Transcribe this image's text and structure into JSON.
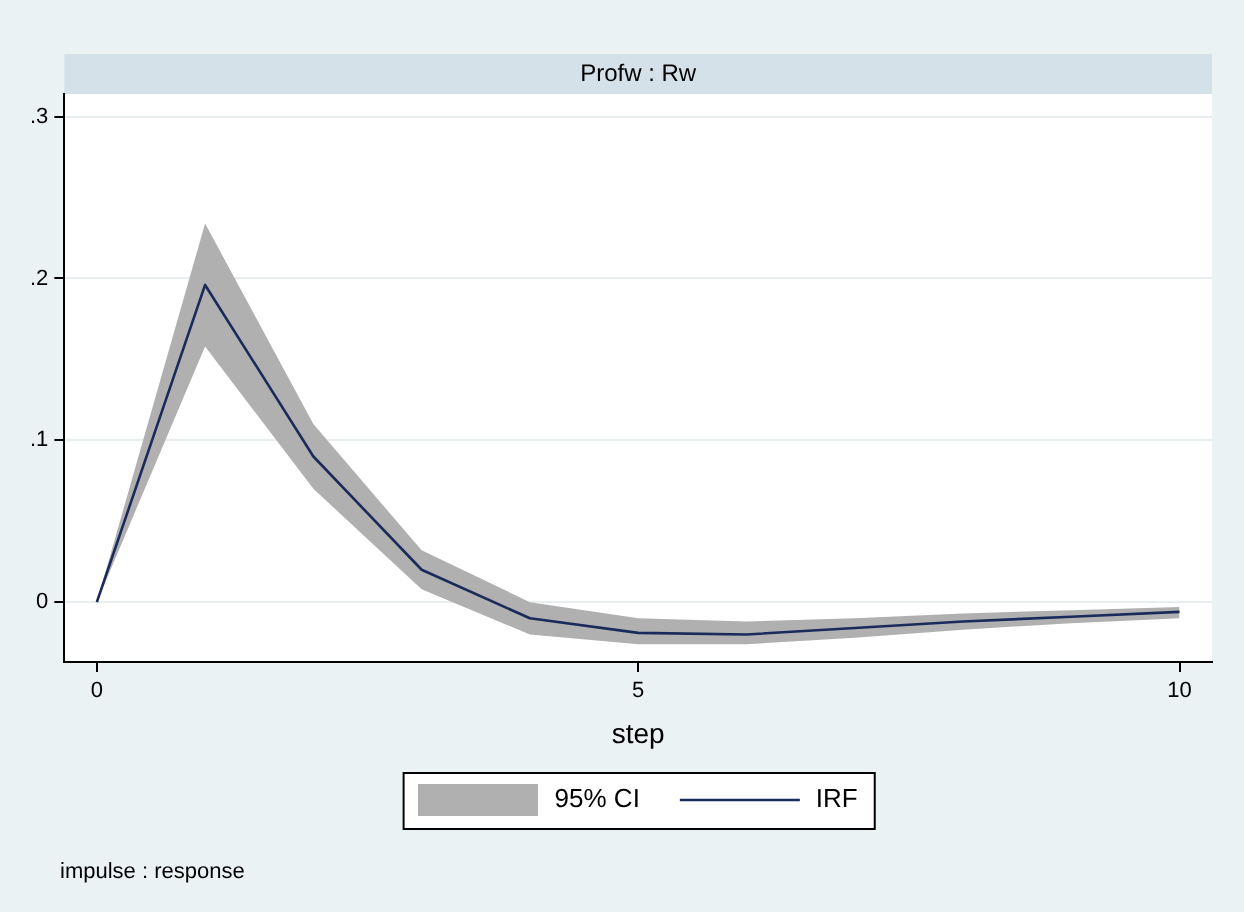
{
  "chart_data": {
    "type": "line",
    "title": "Profw : Rw",
    "xlabel": "step",
    "annotations": [
      "95% CI",
      "impulse : response"
    ],
    "x": [
      0,
      1,
      2,
      3,
      4,
      5,
      6,
      7,
      8,
      9,
      10
    ],
    "series": [
      {
        "name": "IRF",
        "color": "#1a2a5a",
        "values": [
          0,
          0.196,
          0.09,
          0.02,
          -0.01,
          -0.019,
          -0.02,
          -0.016,
          -0.012,
          -0.009,
          -0.006
        ],
        "lower": [
          0,
          0.158,
          0.07,
          0.008,
          -0.02,
          -0.026,
          -0.026,
          -0.022,
          -0.017,
          -0.013,
          -0.01
        ],
        "upper": [
          0,
          0.234,
          0.11,
          0.032,
          0,
          -0.01,
          -0.012,
          -0.01,
          -0.007,
          -0.005,
          -0.003
        ]
      }
    ],
    "xlim": [
      -0.3,
      10.3
    ],
    "xticks": [
      0,
      5,
      10
    ],
    "ylim": [
      -0.037,
      0.314
    ],
    "yticks": [
      {
        "value": 0,
        "label": "0"
      },
      {
        "value": 0.1,
        "label": ".1"
      },
      {
        "value": 0.2,
        "label": ".2"
      },
      {
        "value": 0.3,
        "label": ".3"
      }
    ],
    "grid": "y",
    "legend": "bottom",
    "marker": "none",
    "line_style": "solid"
  }
}
